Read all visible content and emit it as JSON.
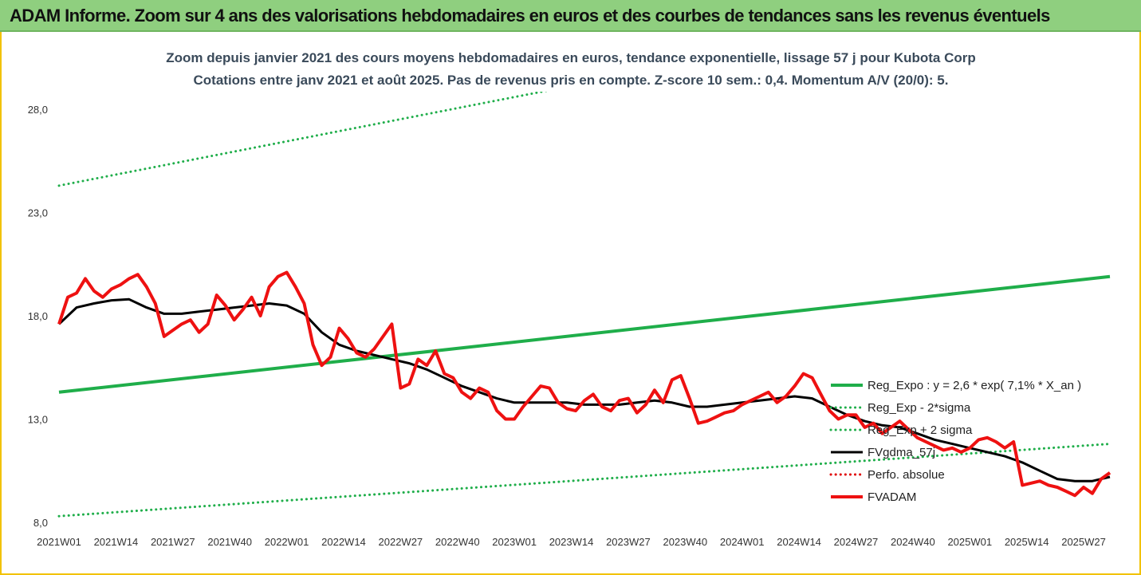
{
  "banner": {
    "title": "ADAM Informe. Zoom sur 4 ans des valorisations hebdomadaires en euros et des courbes de tendances sans les revenus éventuels"
  },
  "chart_data": {
    "type": "line",
    "title_line1": "Zoom depuis janvier 2021 des cours moyens hebdomadaires en euros, tendance exponentielle, lissage 57 j pour Kubota Corp",
    "title_line2": "Cotations entre janv 2021 et août 2025.  Pas de revenus pris en compte. Z-score 10 sem.: 0,4. Momentum A/V (20/0): 5.",
    "ylim": [
      8,
      28
    ],
    "yticks": [
      "8,0",
      "13,0",
      "18,0",
      "23,0",
      "28,0"
    ],
    "ytick_values": [
      8,
      13,
      18,
      23,
      28
    ],
    "xlim": [
      0,
      240
    ],
    "xticks": [
      "2021W01",
      "2021W14",
      "2021W27",
      "2021W40",
      "2022W01",
      "2022W14",
      "2022W27",
      "2022W40",
      "2023W01",
      "2023W14",
      "2023W27",
      "2023W40",
      "2024W01",
      "2024W14",
      "2024W27",
      "2024W40",
      "2025W01",
      "2025W14",
      "2025W27"
    ],
    "xtick_positions": [
      0,
      13,
      26,
      39,
      52,
      65,
      78,
      91,
      104,
      117,
      130,
      143,
      156,
      169,
      182,
      195,
      208,
      221,
      234
    ],
    "grid": false,
    "legend_position": "right",
    "colors": {
      "reg": "#1fae4a",
      "sigma": "#1fae4a",
      "fvgdma": "#000000",
      "perfo": "#e00000",
      "fvadam": "#ee1111"
    },
    "series": [
      {
        "name": "Reg_Expo : y = 2,6 * exp( 7,1% *  X_an )",
        "key": "reg",
        "style": "solid",
        "width": 4,
        "x": [
          0,
          240
        ],
        "values": [
          14.3,
          19.9
        ]
      },
      {
        "name": "Reg_Exp - 2*sigma",
        "key": "sigma",
        "style": "dotted",
        "width": 3,
        "x": [
          0,
          240
        ],
        "values": [
          8.3,
          11.8
        ]
      },
      {
        "name": "Reg_Exp + 2 sigma",
        "key": "sigma",
        "style": "dotted",
        "width": 3,
        "x": [
          0,
          240
        ],
        "values": [
          24.3,
          34.2
        ]
      },
      {
        "name": "FVgdma_57j",
        "key": "fvgdma",
        "style": "solid",
        "width": 3,
        "x": [
          0,
          4,
          8,
          12,
          16,
          20,
          24,
          28,
          32,
          36,
          40,
          44,
          48,
          52,
          56,
          60,
          64,
          68,
          72,
          76,
          80,
          84,
          88,
          92,
          96,
          100,
          104,
          108,
          112,
          116,
          120,
          124,
          128,
          132,
          136,
          140,
          144,
          148,
          152,
          156,
          160,
          164,
          168,
          172,
          176,
          180,
          184,
          188,
          192,
          196,
          200,
          204,
          208,
          212,
          216,
          220,
          224,
          228,
          232,
          236,
          240
        ],
        "values": [
          17.6,
          18.4,
          18.6,
          18.75,
          18.8,
          18.4,
          18.1,
          18.1,
          18.2,
          18.3,
          18.4,
          18.5,
          18.6,
          18.5,
          18.1,
          17.2,
          16.6,
          16.3,
          16.1,
          15.9,
          15.7,
          15.4,
          15.0,
          14.6,
          14.3,
          14.0,
          13.8,
          13.8,
          13.8,
          13.8,
          13.7,
          13.7,
          13.7,
          13.8,
          13.9,
          13.8,
          13.6,
          13.6,
          13.7,
          13.8,
          13.9,
          14.0,
          14.1,
          14.0,
          13.6,
          13.2,
          12.9,
          12.7,
          12.6,
          12.3,
          12.0,
          11.8,
          11.6,
          11.4,
          11.2,
          10.9,
          10.5,
          10.1,
          10.0,
          10.0,
          10.2
        ]
      },
      {
        "name": "Perfo. absolue",
        "key": "perfo",
        "style": "dotted",
        "width": 3,
        "x": [],
        "values": []
      },
      {
        "name": "FVADAM",
        "key": "fvadam",
        "style": "solid",
        "width": 4,
        "x": [
          0,
          2,
          4,
          6,
          8,
          10,
          12,
          14,
          16,
          18,
          20,
          22,
          24,
          26,
          28,
          30,
          32,
          34,
          36,
          38,
          40,
          42,
          44,
          46,
          48,
          50,
          52,
          54,
          56,
          58,
          60,
          62,
          64,
          66,
          68,
          70,
          72,
          74,
          76,
          78,
          80,
          82,
          84,
          86,
          88,
          90,
          92,
          94,
          96,
          98,
          100,
          102,
          104,
          106,
          108,
          110,
          112,
          114,
          116,
          118,
          120,
          122,
          124,
          126,
          128,
          130,
          132,
          134,
          136,
          138,
          140,
          142,
          144,
          146,
          148,
          150,
          152,
          154,
          156,
          158,
          160,
          162,
          164,
          166,
          168,
          170,
          172,
          174,
          176,
          178,
          180,
          182,
          184,
          186,
          188,
          190,
          192,
          194,
          196,
          198,
          200,
          202,
          204,
          206,
          208,
          210,
          212,
          214,
          216,
          218,
          220,
          222,
          224,
          226,
          228,
          230,
          232,
          234,
          236,
          238,
          240
        ],
        "values": [
          17.6,
          18.9,
          19.1,
          19.8,
          19.2,
          18.9,
          19.3,
          19.5,
          19.8,
          20.0,
          19.4,
          18.6,
          17.0,
          17.3,
          17.6,
          17.8,
          17.2,
          17.6,
          19.0,
          18.5,
          17.8,
          18.3,
          18.9,
          18.0,
          19.4,
          19.9,
          20.1,
          19.4,
          18.6,
          16.6,
          15.6,
          16.0,
          17.4,
          16.9,
          16.2,
          16.0,
          16.4,
          17.0,
          17.6,
          14.5,
          14.7,
          15.9,
          15.6,
          16.3,
          15.2,
          15.0,
          14.3,
          14.0,
          14.5,
          14.3,
          13.4,
          13.0,
          13.0,
          13.6,
          14.1,
          14.6,
          14.5,
          13.8,
          13.5,
          13.4,
          13.9,
          14.2,
          13.6,
          13.4,
          13.9,
          14.0,
          13.3,
          13.7,
          14.4,
          13.8,
          14.9,
          15.1,
          14.0,
          12.8,
          12.9,
          13.1,
          13.3,
          13.4,
          13.7,
          13.9,
          14.1,
          14.3,
          13.8,
          14.1,
          14.6,
          15.2,
          15.0,
          14.2,
          13.4,
          13.0,
          13.2,
          13.2,
          12.6,
          12.8,
          12.3,
          12.6,
          12.9,
          12.5,
          12.1,
          11.9,
          11.7,
          11.5,
          11.6,
          11.4,
          11.6,
          12.0,
          12.1,
          11.9,
          11.6,
          11.9,
          9.8,
          9.9,
          10.0,
          9.8,
          9.7,
          9.5,
          9.3,
          9.7,
          9.4,
          10.1,
          10.4
        ]
      }
    ]
  }
}
